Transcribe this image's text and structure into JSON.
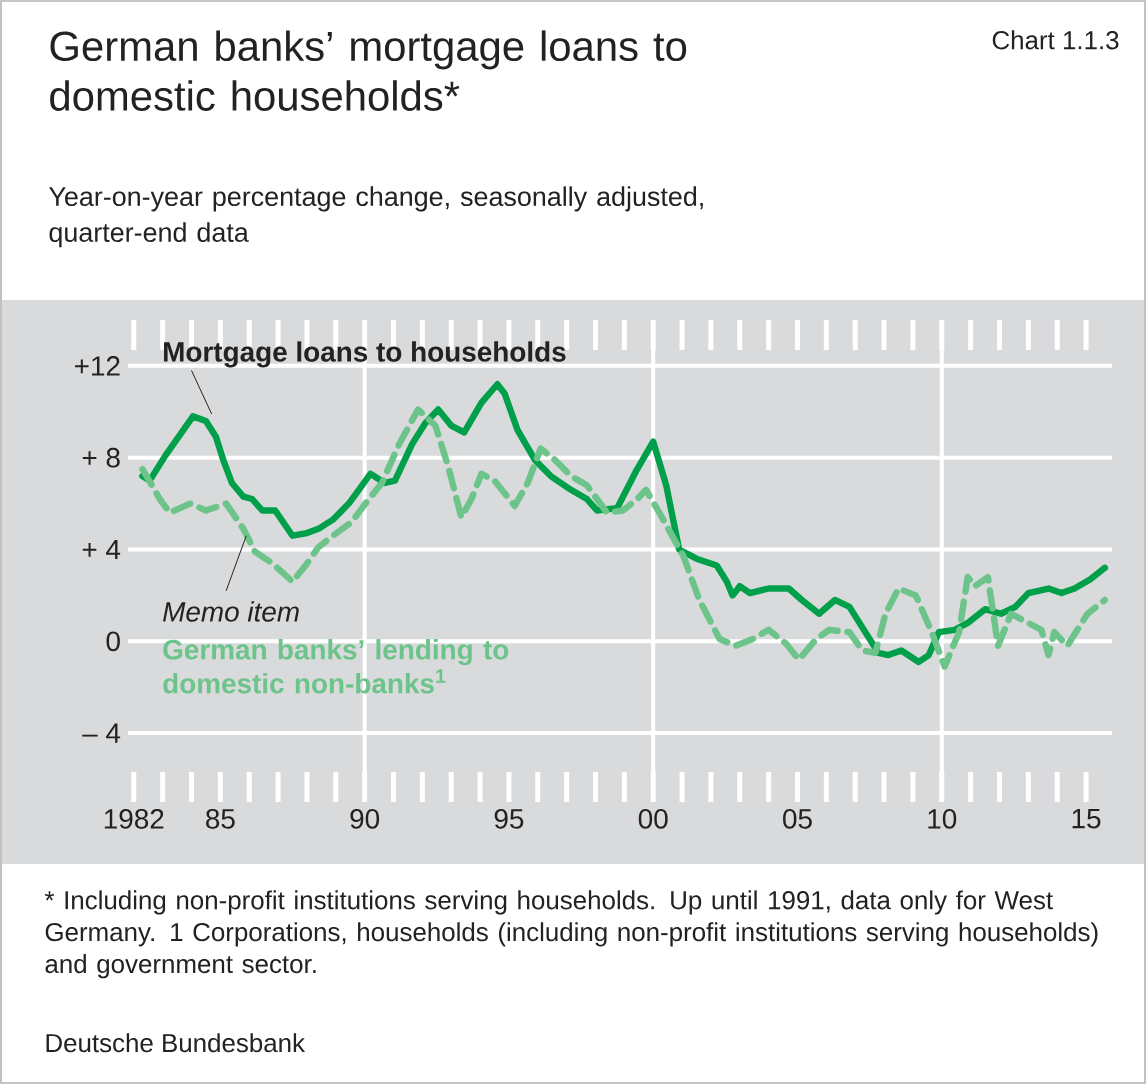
{
  "chart_data": {
    "type": "line",
    "title": "German banks’ mortgage loans to domestic households*",
    "subtitle": "Year-on-year percentage change, seasonally adjusted, quarter-end data",
    "annotations": [
      "Chart 1.1.3",
      {
        "text": "Memo item",
        "x": 1985.9,
        "y": 4.6
      },
      "* Including non-profit institutions serving households. Up until 1991, data only for West Germany. 1 Corporations, households (including non-profit institutions serving households) and government sector.",
      "Deutsche Bundesbank"
    ],
    "xlim": [
      1981.8,
      2015.9
    ],
    "ylim": [
      -7,
      14
    ],
    "xticks": [
      {
        "value": 1982,
        "label": "1982"
      },
      {
        "value": 1983,
        "label": null
      },
      {
        "value": 1984,
        "label": null
      },
      {
        "value": 1985,
        "label": "85"
      },
      {
        "value": 1986,
        "label": null
      },
      {
        "value": 1987,
        "label": null
      },
      {
        "value": 1988,
        "label": null
      },
      {
        "value": 1989,
        "label": null
      },
      {
        "value": 1990,
        "label": "90"
      },
      {
        "value": 1991,
        "label": null
      },
      {
        "value": 1992,
        "label": null
      },
      {
        "value": 1993,
        "label": null
      },
      {
        "value": 1994,
        "label": null
      },
      {
        "value": 1995,
        "label": "95"
      },
      {
        "value": 1996,
        "label": null
      },
      {
        "value": 1997,
        "label": null
      },
      {
        "value": 1998,
        "label": null
      },
      {
        "value": 1999,
        "label": null
      },
      {
        "value": 2000,
        "label": "00"
      },
      {
        "value": 2001,
        "label": null
      },
      {
        "value": 2002,
        "label": null
      },
      {
        "value": 2003,
        "label": null
      },
      {
        "value": 2004,
        "label": null
      },
      {
        "value": 2005,
        "label": "05"
      },
      {
        "value": 2006,
        "label": null
      },
      {
        "value": 2007,
        "label": null
      },
      {
        "value": 2008,
        "label": null
      },
      {
        "value": 2009,
        "label": null
      },
      {
        "value": 2010,
        "label": "10"
      },
      {
        "value": 2011,
        "label": null
      },
      {
        "value": 2012,
        "label": null
      },
      {
        "value": 2013,
        "label": null
      },
      {
        "value": 2014,
        "label": null
      },
      {
        "value": 2015,
        "label": "15"
      }
    ],
    "yticks": [
      {
        "value": -4,
        "label": "– 4"
      },
      0,
      {
        "value": 4,
        "label": "+ 4"
      },
      {
        "value": 8,
        "label": "+ 8"
      },
      {
        "value": 12,
        "label": "+12"
      }
    ],
    "grid": "y",
    "ref_lines": [
      {
        "axis": "x",
        "value": 1990,
        "color": "#ffffff"
      },
      {
        "axis": "x",
        "value": 2000,
        "color": "#ffffff"
      },
      {
        "axis": "x",
        "value": 2010,
        "color": "#ffffff"
      }
    ],
    "series": [
      {
        "name": "Mortgage loans to households",
        "color": "#00a04a",
        "x": [
          1982.3,
          1982.55,
          1983.1,
          1984.05,
          1984.5,
          1984.85,
          1985.1,
          1985.4,
          1985.8,
          1986.1,
          1986.45,
          1986.9,
          1987.5,
          1987.95,
          1988.4,
          1988.9,
          1989.45,
          1989.8,
          1990.2,
          1990.7,
          1991.05,
          1991.65,
          1992.1,
          1992.55,
          1993.0,
          1993.45,
          1994.05,
          1994.6,
          1994.85,
          1995.3,
          1995.9,
          1996.45,
          1997.15,
          1997.7,
          1998.05,
          1998.75,
          1999.4,
          2000.0,
          2000.45,
          2000.9,
          2001.5,
          2002.2,
          2002.55,
          2002.75,
          2003.0,
          2003.35,
          2004.0,
          2004.7,
          2005.15,
          2005.75,
          2006.3,
          2006.8,
          2007.35,
          2007.8,
          2008.15,
          2008.6,
          2009.2,
          2009.55,
          2009.9,
          2010.45,
          2010.9,
          2011.5,
          2012.05,
          2012.55,
          2013.0,
          2013.7,
          2014.15,
          2014.6,
          2015.15,
          2015.65
        ],
        "values": [
          7.2,
          7.0,
          8.1,
          9.8,
          9.6,
          8.9,
          7.9,
          6.9,
          6.3,
          6.2,
          5.7,
          5.7,
          4.6,
          4.7,
          4.9,
          5.3,
          6.0,
          6.6,
          7.3,
          6.9,
          7.0,
          8.6,
          9.5,
          10.1,
          9.4,
          9.1,
          10.4,
          11.2,
          10.8,
          9.2,
          7.9,
          7.2,
          6.6,
          6.2,
          5.7,
          5.8,
          7.4,
          8.7,
          6.8,
          4.0,
          3.6,
          3.3,
          2.6,
          2.0,
          2.4,
          2.1,
          2.3,
          2.3,
          1.8,
          1.2,
          1.8,
          1.5,
          0.4,
          -0.5,
          -0.6,
          -0.4,
          -0.9,
          -0.6,
          0.4,
          0.5,
          0.8,
          1.4,
          1.2,
          1.5,
          2.1,
          2.3,
          2.1,
          2.3,
          2.7,
          3.2
        ]
      },
      {
        "name": "German banks’ lending to domestic non-banks$^{1}$",
        "color": "#6cc48a",
        "line_style": "dashed",
        "x": [
          1982.3,
          1982.9,
          1983.25,
          1983.95,
          1984.5,
          1985.2,
          1985.8,
          1986.2,
          1986.8,
          1987.5,
          1987.95,
          1988.4,
          1988.9,
          1989.55,
          1990.15,
          1990.6,
          1991.2,
          1991.85,
          1992.45,
          1992.9,
          1993.35,
          1993.7,
          1994.05,
          1994.5,
          1995.2,
          1995.65,
          1996.1,
          1996.6,
          1997.15,
          1997.7,
          1998.4,
          1998.95,
          1999.45,
          1999.75,
          2000.35,
          2001.05,
          2001.6,
          2002.3,
          2002.85,
          2003.45,
          2004.0,
          2004.6,
          2005.05,
          2005.65,
          2006.1,
          2006.8,
          2007.25,
          2007.7,
          2008.05,
          2008.5,
          2009.1,
          2009.65,
          2010.1,
          2010.6,
          2010.9,
          2011.15,
          2011.6,
          2011.95,
          2012.4,
          2013.0,
          2013.45,
          2013.7,
          2013.9,
          2014.35,
          2015.05,
          2015.65
        ],
        "values": [
          7.5,
          6.2,
          5.6,
          6.0,
          5.7,
          6.0,
          4.9,
          3.9,
          3.4,
          2.6,
          3.3,
          4.1,
          4.6,
          5.2,
          6.2,
          6.9,
          8.6,
          10.1,
          9.4,
          7.6,
          5.4,
          6.2,
          7.3,
          7.0,
          5.9,
          6.9,
          8.4,
          7.9,
          7.2,
          6.8,
          5.6,
          5.7,
          6.2,
          6.6,
          5.3,
          3.7,
          1.8,
          0.1,
          -0.2,
          0.1,
          0.5,
          -0.1,
          -0.8,
          0.1,
          0.5,
          0.4,
          -0.4,
          -0.5,
          1.2,
          2.3,
          2.0,
          0.4,
          -1.1,
          0.4,
          2.8,
          2.4,
          2.8,
          -0.2,
          1.2,
          0.8,
          0.5,
          -0.6,
          0.4,
          -0.2,
          1.2,
          1.8
        ]
      }
    ]
  }
}
